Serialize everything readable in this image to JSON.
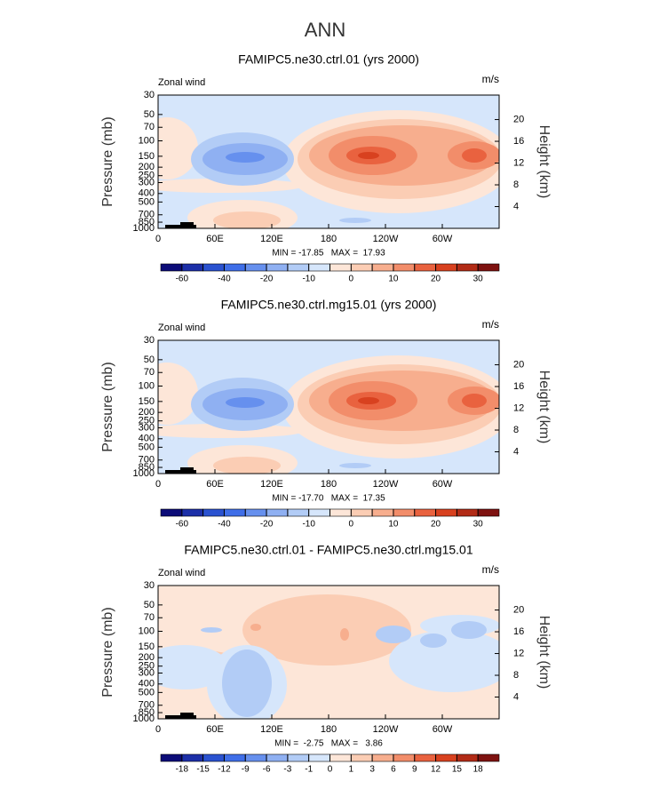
{
  "title": "ANN",
  "chart_data": [
    {
      "type": "contour",
      "title": "FAMIPC5.ne30.ctrl.01 (yrs 2000)",
      "left_label": "Zonal wind",
      "right_label": "m/s",
      "y_label": "Pressure (mb)",
      "y2_label": "Height (km)",
      "stats": "MIN = -17.85   MAX =  17.93",
      "xlim": [
        0,
        360
      ],
      "xticks": [
        0,
        {
          "value": 60,
          "label": "60E"
        },
        {
          "value": 120,
          "label": "120E"
        },
        180,
        {
          "value": 240,
          "label": "120W"
        },
        {
          "value": 300,
          "label": "60W"
        }
      ],
      "ylim": [
        1000,
        30
      ],
      "yscale": "log",
      "yticks": [
        30,
        50,
        70,
        100,
        150,
        200,
        250,
        300,
        400,
        500,
        700,
        850,
        1000
      ],
      "y2lim": [
        0,
        24.5
      ],
      "y2ticks": [
        4,
        8,
        12,
        16,
        20
      ],
      "levels": [
        -60,
        -50,
        -40,
        -30,
        -20,
        -15,
        -10,
        -5,
        0,
        5,
        10,
        15,
        20,
        25,
        30
      ],
      "cbar_ticks": [
        -60,
        -40,
        -20,
        -10,
        0,
        10,
        20,
        30
      ],
      "colors": [
        "#0c0c78",
        "#1c2fa8",
        "#2a52d0",
        "#3f6ee8",
        "#6690ee",
        "#8fb0f2",
        "#b2ccf6",
        "#d6e6fb",
        "#fde6d8",
        "#fbcdb4",
        "#f7ae8e",
        "#f28d6a",
        "#e9623f",
        "#d8411f",
        "#b22b16",
        "#7e1210"
      ]
    },
    {
      "type": "contour",
      "title": "FAMIPC5.ne30.ctrl.mg15.01 (yrs 2000)",
      "left_label": "Zonal wind",
      "right_label": "m/s",
      "y_label": "Pressure (mb)",
      "y2_label": "Height (km)",
      "stats": "MIN = -17.70   MAX =  17.35",
      "xlim": [
        0,
        360
      ],
      "xticks": [
        0,
        {
          "value": 60,
          "label": "60E"
        },
        {
          "value": 120,
          "label": "120E"
        },
        180,
        {
          "value": 240,
          "label": "120W"
        },
        {
          "value": 300,
          "label": "60W"
        }
      ],
      "ylim": [
        1000,
        30
      ],
      "yscale": "log",
      "yticks": [
        30,
        50,
        70,
        100,
        150,
        200,
        250,
        300,
        400,
        500,
        700,
        850,
        1000
      ],
      "y2lim": [
        0,
        24.5
      ],
      "y2ticks": [
        4,
        8,
        12,
        16,
        20
      ],
      "levels": [
        -60,
        -50,
        -40,
        -30,
        -20,
        -15,
        -10,
        -5,
        0,
        5,
        10,
        15,
        20,
        25,
        30
      ],
      "cbar_ticks": [
        -60,
        -40,
        -20,
        -10,
        0,
        10,
        20,
        30
      ],
      "colors": [
        "#0c0c78",
        "#1c2fa8",
        "#2a52d0",
        "#3f6ee8",
        "#6690ee",
        "#8fb0f2",
        "#b2ccf6",
        "#d6e6fb",
        "#fde6d8",
        "#fbcdb4",
        "#f7ae8e",
        "#f28d6a",
        "#e9623f",
        "#d8411f",
        "#b22b16",
        "#7e1210"
      ]
    },
    {
      "type": "contour",
      "title": "FAMIPC5.ne30.ctrl.01 - FAMIPC5.ne30.ctrl.mg15.01",
      "left_label": "Zonal wind",
      "right_label": "m/s",
      "y_label": "Pressure (mb)",
      "y2_label": "Height (km)",
      "stats": "MIN =  -2.75   MAX =   3.86",
      "xlim": [
        0,
        360
      ],
      "xticks": [
        0,
        {
          "value": 60,
          "label": "60E"
        },
        {
          "value": 120,
          "label": "120E"
        },
        180,
        {
          "value": 240,
          "label": "120W"
        },
        {
          "value": 300,
          "label": "60W"
        }
      ],
      "ylim": [
        1000,
        30
      ],
      "yscale": "log",
      "yticks": [
        30,
        50,
        70,
        100,
        150,
        200,
        250,
        300,
        400,
        500,
        700,
        850,
        1000
      ],
      "y2lim": [
        0,
        24.5
      ],
      "y2ticks": [
        4,
        8,
        12,
        16,
        20
      ],
      "levels": [
        -18,
        -15,
        -12,
        -9,
        -6,
        -3,
        -1,
        0,
        1,
        3,
        6,
        9,
        12,
        15,
        18
      ],
      "cbar_ticks": [
        -18,
        -15,
        -12,
        -9,
        -6,
        -3,
        -1,
        0,
        1,
        3,
        6,
        9,
        12,
        15,
        18
      ],
      "colors": [
        "#0c0c78",
        "#1c2fa8",
        "#2a52d0",
        "#3f6ee8",
        "#6690ee",
        "#8fb0f2",
        "#b2ccf6",
        "#d6e6fb",
        "#fde6d8",
        "#fbcdb4",
        "#f7ae8e",
        "#f28d6a",
        "#e9623f",
        "#d8411f",
        "#b22b16",
        "#7e1210"
      ]
    }
  ]
}
